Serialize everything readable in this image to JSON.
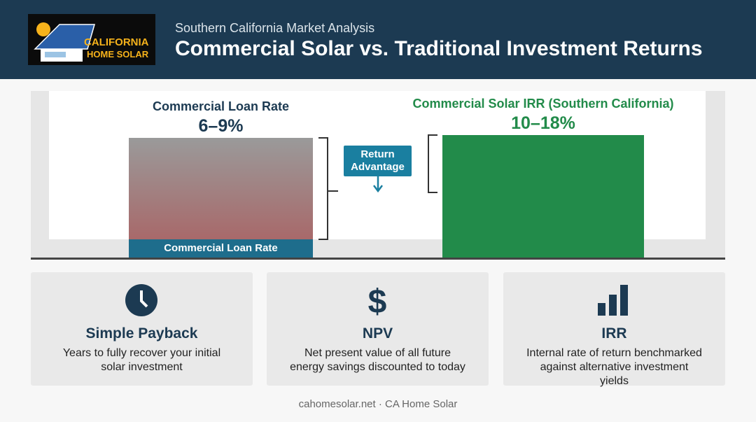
{
  "header": {
    "logo": {
      "line1": "CALIFORNIA",
      "line2": "HOME SOLAR"
    },
    "subtitle": "Southern California Market Analysis",
    "title": "Commercial Solar vs. Traditional Investment Returns"
  },
  "comparison": {
    "left": {
      "label": "Commercial Loan Rate",
      "value": "6–9%",
      "bar_label": "Commercial Loan Rate"
    },
    "callout": "Return Advantage",
    "right": {
      "label": "Commercial Solar IRR (Southern California)",
      "value": "10–18%"
    }
  },
  "cards": [
    {
      "title": "Simple Payback",
      "description": "Years to fully recover your initial solar investment"
    },
    {
      "title": "NPV",
      "description": "Net present value of all future energy savings discounted to today"
    },
    {
      "title": "IRR",
      "description": "Internal rate of return benchmarked against alternative investment yields"
    }
  ],
  "footer": "cahomesolar.net · CA Home Solar"
}
